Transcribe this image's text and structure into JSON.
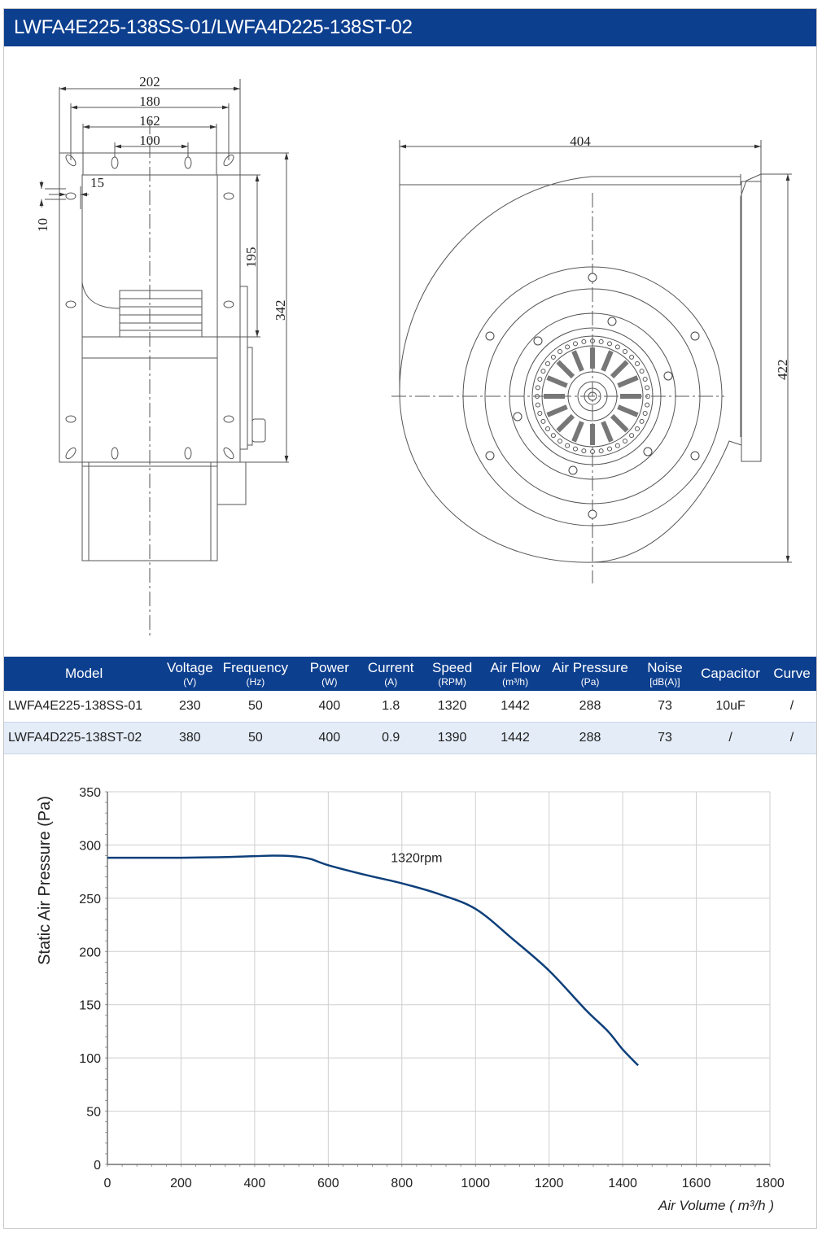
{
  "title": "LWFA4E225-138SS-01/LWFA4D225-138ST-02",
  "drawing": {
    "dims": {
      "d202": "202",
      "d180": "180",
      "d162": "162",
      "d100": "100",
      "d15": "15",
      "d10": "10",
      "d195": "195",
      "d342": "342",
      "d404": "404",
      "d422": "422"
    }
  },
  "table": {
    "headers": [
      {
        "label": "Model",
        "unit": ""
      },
      {
        "label": "Voltage",
        "unit": "(V)"
      },
      {
        "label": "Frequency",
        "unit": "(Hz)"
      },
      {
        "label": "Power",
        "unit": "(W)"
      },
      {
        "label": "Current",
        "unit": "(A)"
      },
      {
        "label": "Speed",
        "unit": "(RPM)"
      },
      {
        "label": "Air Flow",
        "unit": "(m³/h)"
      },
      {
        "label": "Air Pressure",
        "unit": "(Pa)"
      },
      {
        "label": "Noise",
        "unit": "[dB(A)]"
      },
      {
        "label": "Capacitor",
        "unit": ""
      },
      {
        "label": "Curve",
        "unit": ""
      }
    ],
    "rows": [
      [
        "LWFA4E225-138SS-01",
        "230",
        "50",
        "400",
        "1.8",
        "1320",
        "1442",
        "288",
        "73",
        "10uF",
        "/"
      ],
      [
        "LWFA4D225-138ST-02",
        "380",
        "50",
        "400",
        "0.9",
        "1390",
        "1442",
        "288",
        "73",
        "/",
        "/"
      ]
    ]
  },
  "chart_data": {
    "type": "line",
    "xlabel": "Air Volume ( m³/h )",
    "ylabel": "Static Air Pressure  (Pa)",
    "xlim": [
      0,
      1800
    ],
    "ylim": [
      0,
      350
    ],
    "xticks": [
      "0",
      "200",
      "400",
      "600",
      "800",
      "1000",
      "1200",
      "1400",
      "1600",
      "1800"
    ],
    "yticks": [
      "0",
      "50",
      "100",
      "150",
      "200",
      "250",
      "300",
      "350"
    ],
    "grid": true,
    "series": [
      {
        "name": "1320rpm",
        "color": "#0d3f7a",
        "x": [
          0,
          100,
          200,
          300,
          400,
          450,
          500,
          550,
          600,
          700,
          800,
          900,
          1000,
          1100,
          1200,
          1300,
          1360,
          1400,
          1442
        ],
        "y": [
          288,
          288,
          288,
          288.5,
          289.5,
          290,
          289.5,
          287,
          281,
          272,
          264,
          254,
          240,
          212,
          182,
          145,
          125,
          108,
          93
        ]
      }
    ],
    "annotations": [
      {
        "text": "1320rpm",
        "x": 840,
        "y": 284
      }
    ]
  }
}
